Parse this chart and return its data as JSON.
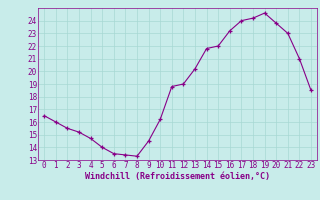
{
  "x": [
    0,
    1,
    2,
    3,
    4,
    5,
    6,
    7,
    8,
    9,
    10,
    11,
    12,
    13,
    14,
    15,
    16,
    17,
    18,
    19,
    20,
    21,
    22,
    23
  ],
  "y": [
    16.5,
    16.0,
    15.5,
    15.2,
    14.7,
    14.0,
    13.5,
    13.4,
    13.3,
    14.5,
    16.2,
    18.8,
    19.0,
    20.2,
    21.8,
    22.0,
    23.2,
    24.0,
    24.2,
    24.6,
    23.8,
    23.0,
    21.0,
    18.5
  ],
  "xlabel": "Windchill (Refroidissement éolien,°C)",
  "line_color": "#880088",
  "bg_color": "#c8ecea",
  "grid_color": "#a8d8d4",
  "text_color": "#880088",
  "ylim": [
    13,
    25
  ],
  "xlim": [
    -0.5,
    23.5
  ],
  "yticks": [
    13,
    14,
    15,
    16,
    17,
    18,
    19,
    20,
    21,
    22,
    23,
    24
  ],
  "xticks": [
    0,
    1,
    2,
    3,
    4,
    5,
    6,
    7,
    8,
    9,
    10,
    11,
    12,
    13,
    14,
    15,
    16,
    17,
    18,
    19,
    20,
    21,
    22,
    23
  ],
  "xlabel_fontsize": 6.0,
  "tick_fontsize": 5.5
}
